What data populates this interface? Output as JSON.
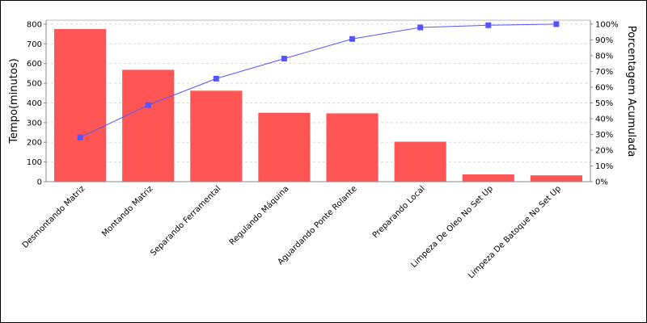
{
  "chart_data": {
    "type": "bar",
    "title": "",
    "xlabel": "",
    "ylabel": "Tempo(minutos)",
    "y2label": "Porcentagem Acumulada",
    "ylim": [
      0,
      820
    ],
    "y2lim": [
      0,
      1.025
    ],
    "yticks": [
      0,
      100,
      200,
      300,
      400,
      500,
      600,
      700,
      800
    ],
    "y2ticks": [
      "0%",
      "10%",
      "20%",
      "30%",
      "40%",
      "50%",
      "60%",
      "70%",
      "80%",
      "90%",
      "100%"
    ],
    "y2tick_values": [
      0,
      0.1,
      0.2,
      0.3,
      0.4,
      0.5,
      0.6,
      0.7,
      0.8,
      0.9,
      1.0
    ],
    "grid": true,
    "categories": [
      "Desmontando Matriz",
      "Montando Matriz",
      "Separando Ferramental",
      "Regulando Máquina",
      "Aguardando Ponte Rolante",
      "Preparando Local",
      "Limpeza De Oleo No Set Up",
      "Limpeza De Batoque No Set Up"
    ],
    "series": [
      {
        "type": "bar",
        "color": "#ff5555",
        "values": [
          775,
          568,
          462,
          350,
          347,
          203,
          37,
          32
        ]
      },
      {
        "type": "line",
        "axis": "right",
        "color": "#5555ff",
        "marker": "square",
        "values": [
          0.281,
          0.486,
          0.654,
          0.781,
          0.906,
          0.979,
          0.993,
          1.0
        ]
      }
    ]
  }
}
